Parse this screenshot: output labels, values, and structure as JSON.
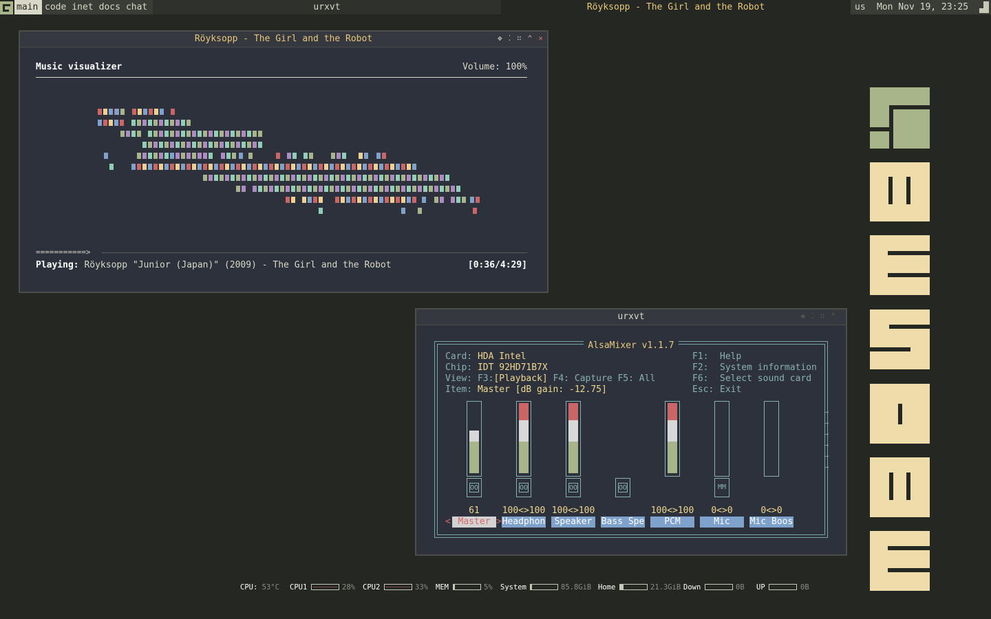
{
  "topbar": {
    "tag_current": "main",
    "tags": [
      "code",
      "inet",
      "docs",
      "chat"
    ],
    "task": "urxvt",
    "now_playing": "Röyksopp - The Girl and the Robot",
    "keyboard_layout": "us",
    "clock": "Mon Nov 19, 23:25"
  },
  "visualizer_window": {
    "title": "Röyksopp - The Girl and the Robot",
    "heading": "Music visualizer",
    "volume": "Volume: 100%",
    "progress_bar": "===========>",
    "progress": 0.14,
    "status_label": "Playing:",
    "status_text": "Röyksopp \"Junior (Japan)\" (2009) - The Girl and the Robot",
    "time": "[0:36/4:29]",
    "colors": [
      "#cc6666",
      "#b08ac2",
      "#f0d090",
      "#8fcfb6",
      "#7ea2cc",
      "#a8b58a"
    ]
  },
  "mixer_window": {
    "title": "urxvt",
    "app_title": "AlsaMixer v1.1.7",
    "info": {
      "card_label": "Card:",
      "card": "HDA Intel",
      "chip_label": "Chip:",
      "chip": "IDT 92HD71B7X",
      "view_label": "View:",
      "view_f3": "F3:",
      "view_playback": "[Playback]",
      "view_f4": "F4: Capture",
      "view_f5": "F5: All",
      "item_label": "Item:",
      "item": "Master [dB gain: -12.75]"
    },
    "keys": [
      {
        "key": "F1:",
        "desc": "Help"
      },
      {
        "key": "F2:",
        "desc": "System information"
      },
      {
        "key": "F6:",
        "desc": "Select sound card"
      },
      {
        "key": "Esc:",
        "desc": "Exit"
      }
    ],
    "channels": [
      {
        "name": "Master",
        "value": "61",
        "level": 0.61,
        "switch": "OO",
        "selected": true
      },
      {
        "name": "Headphon",
        "value": "100<>100",
        "level": 1.0,
        "switch": "OO"
      },
      {
        "name": "Speaker",
        "value": "100<>100",
        "level": 1.0,
        "switch": "OO"
      },
      {
        "name": "Bass Spe",
        "value": "",
        "level": null,
        "switch": "OO"
      },
      {
        "name": "PCM",
        "value": "100<>100",
        "level": 1.0,
        "switch": ""
      },
      {
        "name": "Mic",
        "value": "0<>0",
        "level": 0.0,
        "switch": "MM"
      },
      {
        "name": "Mic Boos",
        "value": "0<>0",
        "level": 0.0,
        "switch": ""
      }
    ],
    "more_arrows": [
      "→",
      "→",
      "→",
      "→",
      "→",
      "→"
    ],
    "left_marker": "<",
    "right_marker": ">"
  },
  "statusbar": {
    "cpu": {
      "label": "CPU:",
      "value": "53°C"
    },
    "cpu1": {
      "label": "CPU1",
      "value": "28%"
    },
    "cpu2": {
      "label": "CPU2",
      "value": "33%"
    },
    "mem": {
      "label": "MEM",
      "value": "5%",
      "fill": 0.05
    },
    "system": {
      "label": "System",
      "value": "85.8GiB",
      "fill": 0.05
    },
    "home": {
      "label": "Home",
      "value": "21.3GiB",
      "fill": 0.12
    },
    "down": {
      "label": "Down",
      "value": "0B",
      "fill": 0
    },
    "up": {
      "label": "UP",
      "value": "0B",
      "fill": 0
    }
  },
  "logo": {
    "colors": {
      "first": "#a8b58a",
      "rest": "#eedcab",
      "bg": "#252822"
    }
  }
}
